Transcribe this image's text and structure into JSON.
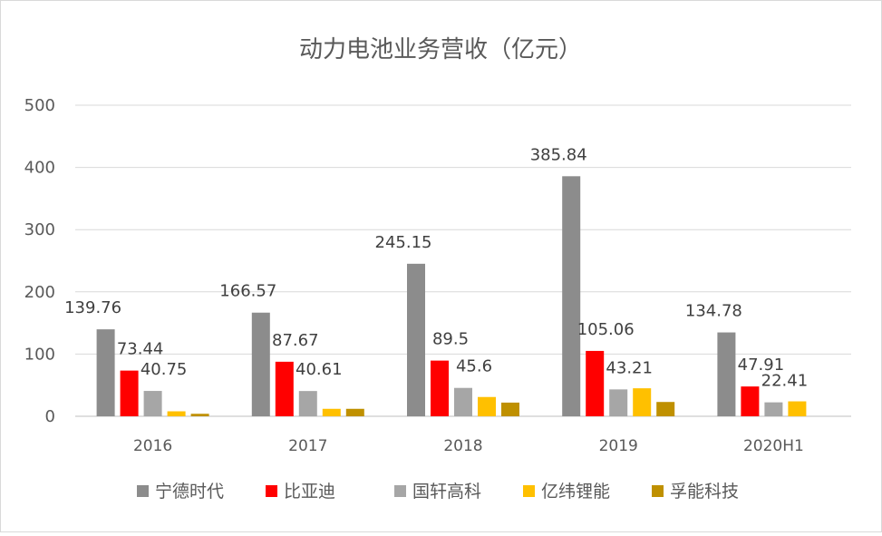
{
  "chart_data": {
    "type": "bar",
    "title": "动力电池业务营收（亿元）",
    "xlabel": "",
    "ylabel": "",
    "ylim": [
      0,
      500
    ],
    "yticks": [
      0,
      100,
      200,
      300,
      400,
      500
    ],
    "grid": true,
    "legend_position": "bottom",
    "categories": [
      "2016",
      "2017",
      "2018",
      "2019",
      "2020H1"
    ],
    "series": [
      {
        "name": "宁德时代",
        "color": "#8c8c8c",
        "values": [
          139.76,
          166.57,
          245.15,
          385.84,
          134.78
        ],
        "labels": [
          "139.76",
          "166.57",
          "245.15",
          "385.84",
          "134.78"
        ]
      },
      {
        "name": "比亚迪",
        "color": "#ff0000",
        "values": [
          73.44,
          87.67,
          89.5,
          105.06,
          47.91
        ],
        "labels": [
          "73.44",
          "87.67",
          "89.5",
          "105.06",
          "47.91"
        ]
      },
      {
        "name": "国轩高科",
        "color": "#a6a6a6",
        "values": [
          40.75,
          40.61,
          45.6,
          43.21,
          22.41
        ],
        "labels": [
          "40.75",
          "40.61",
          "45.6",
          "43.21",
          "22.41"
        ]
      },
      {
        "name": "亿纬锂能",
        "color": "#ffc000",
        "values": [
          8,
          12,
          31,
          45,
          24
        ],
        "labels": null
      },
      {
        "name": "孚能科技",
        "color": "#bf9000",
        "values": [
          4,
          12,
          22,
          23,
          0
        ],
        "labels": null
      }
    ]
  }
}
